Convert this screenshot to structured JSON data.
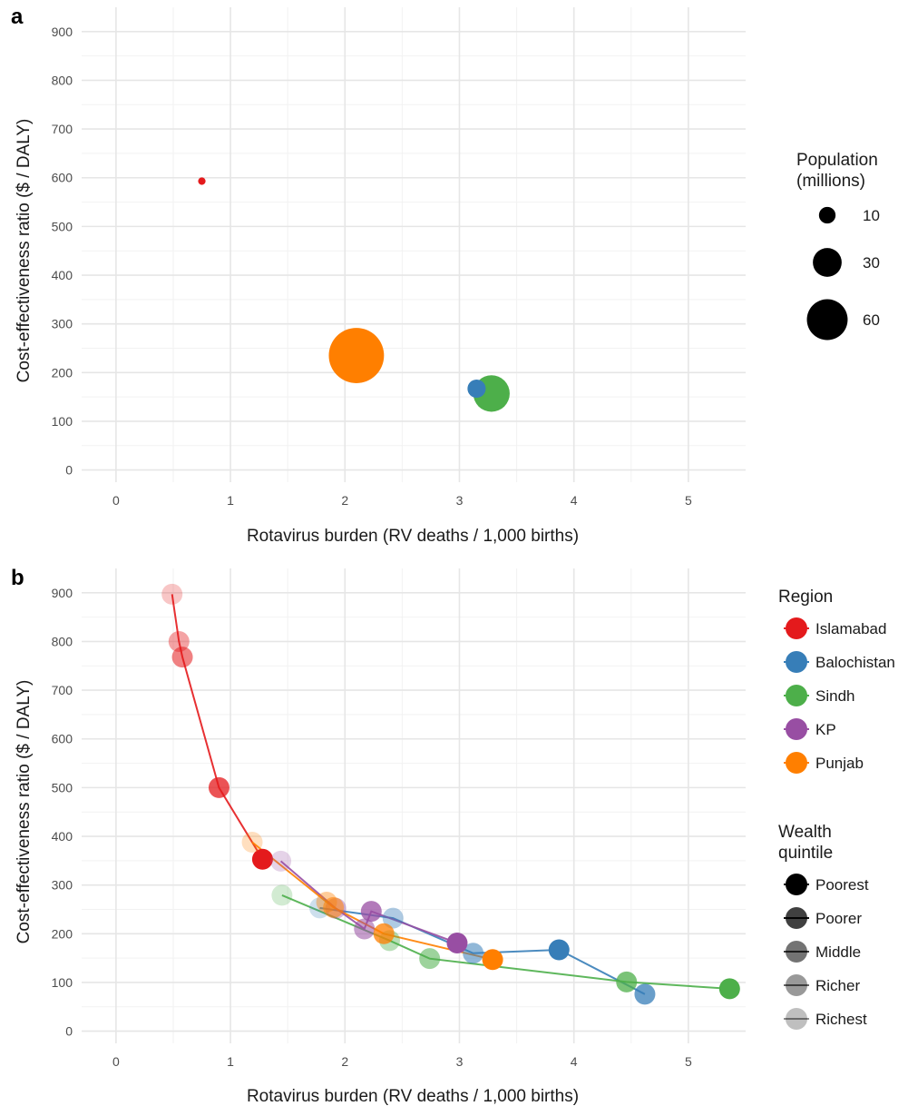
{
  "chart_data": [
    {
      "panel": "a",
      "type": "scatter",
      "xlabel": "Rotavirus burden (RV deaths / 1,000 births)",
      "ylabel": "Cost-effectiveness ratio ($ / DALY)",
      "xlim": [
        -0.3,
        5.5
      ],
      "ylim": [
        -25,
        950
      ],
      "x_ticks": [
        0,
        1,
        2,
        3,
        4,
        5
      ],
      "y_ticks": [
        0,
        100,
        200,
        300,
        400,
        500,
        600,
        700,
        800,
        900
      ],
      "grid": true,
      "legend_position": "right",
      "size_legend": {
        "title_lines": [
          "Population",
          "(millions)"
        ],
        "entries": [
          {
            "label": "10",
            "value": 10
          },
          {
            "label": "30",
            "value": 30
          },
          {
            "label": "60",
            "value": 60
          }
        ]
      },
      "points": [
        {
          "region": "Islamabad",
          "x": 0.75,
          "y": 593,
          "population": 2
        },
        {
          "region": "Punjab",
          "x": 2.1,
          "y": 235,
          "population": 110
        },
        {
          "region": "Balochistan",
          "x": 3.15,
          "y": 167,
          "population": 12
        },
        {
          "region": "Sindh",
          "x": 3.28,
          "y": 157,
          "population": 48
        }
      ]
    },
    {
      "panel": "b",
      "type": "scatter",
      "xlabel": "Rotavirus burden (RV deaths / 1,000 births)",
      "ylabel": "Cost-effectiveness ratio ($ / DALY)",
      "xlim": [
        -0.3,
        5.5
      ],
      "ylim": [
        -25,
        950
      ],
      "x_ticks": [
        0,
        1,
        2,
        3,
        4,
        5
      ],
      "y_ticks": [
        0,
        100,
        200,
        300,
        400,
        500,
        600,
        700,
        800,
        900
      ],
      "grid": true,
      "legend_position": "right",
      "region_legend": {
        "title_lines": [
          "Region"
        ],
        "entries": [
          {
            "label": "Islamabad",
            "color": "#e41a1c"
          },
          {
            "label": "Balochistan",
            "color": "#377eb8"
          },
          {
            "label": "Sindh",
            "color": "#4daf4a"
          },
          {
            "label": "KP",
            "color": "#984ea3"
          },
          {
            "label": "Punjab",
            "color": "#ff7f00"
          }
        ]
      },
      "wealth_legend": {
        "title_lines": [
          "Wealth",
          "quintile"
        ],
        "entries": [
          {
            "label": "Poorest",
            "alpha": 1.0
          },
          {
            "label": "Poorer",
            "alpha": 0.75
          },
          {
            "label": "Middle",
            "alpha": 0.55
          },
          {
            "label": "Richer",
            "alpha": 0.4
          },
          {
            "label": "Richest",
            "alpha": 0.25
          }
        ]
      },
      "series": [
        {
          "region": "Islamabad",
          "color": "#e41a1c",
          "points": [
            {
              "quintile": "Poorest",
              "x": 1.28,
              "y": 353
            },
            {
              "quintile": "Poorer",
              "x": 0.9,
              "y": 500
            },
            {
              "quintile": "Middle",
              "x": 0.58,
              "y": 768
            },
            {
              "quintile": "Richer",
              "x": 0.55,
              "y": 800
            },
            {
              "quintile": "Richest",
              "x": 0.49,
              "y": 897
            }
          ]
        },
        {
          "region": "Balochistan",
          "color": "#377eb8",
          "points": [
            {
              "quintile": "Poorest",
              "x": 3.87,
              "y": 167
            },
            {
              "quintile": "Poorer",
              "x": 4.62,
              "y": 76
            },
            {
              "quintile": "Middle",
              "x": 3.12,
              "y": 160
            },
            {
              "quintile": "Richer",
              "x": 2.42,
              "y": 232
            },
            {
              "quintile": "Richest",
              "x": 1.78,
              "y": 253
            }
          ]
        },
        {
          "region": "Sindh",
          "color": "#4daf4a",
          "points": [
            {
              "quintile": "Poorest",
              "x": 5.36,
              "y": 87
            },
            {
              "quintile": "Poorer",
              "x": 4.46,
              "y": 101
            },
            {
              "quintile": "Middle",
              "x": 2.74,
              "y": 149
            },
            {
              "quintile": "Richer",
              "x": 2.39,
              "y": 186
            },
            {
              "quintile": "Richest",
              "x": 1.45,
              "y": 279
            }
          ]
        },
        {
          "region": "KP",
          "color": "#984ea3",
          "points": [
            {
              "quintile": "Poorest",
              "x": 2.98,
              "y": 181
            },
            {
              "quintile": "Poorer",
              "x": 2.23,
              "y": 246
            },
            {
              "quintile": "Middle",
              "x": 2.17,
              "y": 210
            },
            {
              "quintile": "Richer",
              "x": 1.92,
              "y": 252
            },
            {
              "quintile": "Richest",
              "x": 1.44,
              "y": 349
            }
          ]
        },
        {
          "region": "Punjab",
          "color": "#ff7f00",
          "points": [
            {
              "quintile": "Poorest",
              "x": 3.29,
              "y": 147
            },
            {
              "quintile": "Poorer",
              "x": 2.34,
              "y": 200
            },
            {
              "quintile": "Middle",
              "x": 1.9,
              "y": 254
            },
            {
              "quintile": "Richer",
              "x": 1.84,
              "y": 265
            },
            {
              "quintile": "Richest",
              "x": 1.19,
              "y": 388
            }
          ]
        }
      ]
    }
  ]
}
